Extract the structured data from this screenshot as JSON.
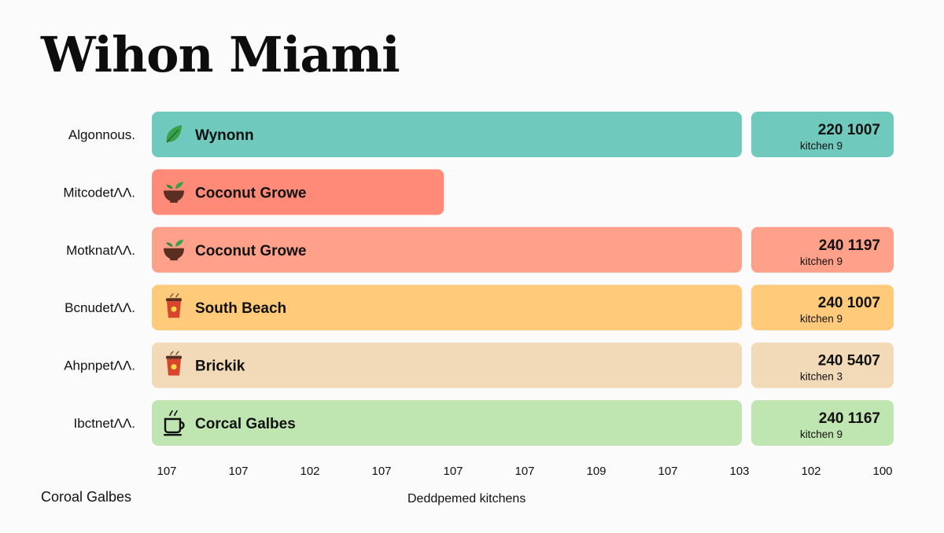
{
  "title": "Wihon Miami",
  "footer_note": "Coroal Galbes",
  "chart_data": {
    "type": "bar",
    "orientation": "horizontal",
    "xlabel": "Deddpemed kitchens",
    "x_tick_labels": [
      "107",
      "107",
      "102",
      "107",
      "107",
      "107",
      "109",
      "107",
      "103",
      "102",
      "100"
    ],
    "grid": false,
    "rows": [
      {
        "category": "Algonnous.",
        "bar_label": "Wynonn",
        "icon": "leaf-icon",
        "color": "#6fc9bd",
        "fraction": 1.0,
        "value_label": "220 1007",
        "sub_label": "kitchen 9",
        "has_value_box": true
      },
      {
        "category": "MitcodetΛΛ.",
        "bar_label": "Coconut Growe",
        "icon": "bowl-icon",
        "color": "#ff8a78",
        "fraction": 0.495,
        "value_label": "",
        "sub_label": "",
        "has_value_box": false
      },
      {
        "category": "MotknatΛΛ.",
        "bar_label": "Coconut Growe",
        "icon": "bowl-icon",
        "color": "#ffa08a",
        "fraction": 1.0,
        "value_label": "240 1197",
        "sub_label": "kitchen 9",
        "has_value_box": true
      },
      {
        "category": "BcnudetΛΛ.",
        "bar_label": "South Beach",
        "icon": "coffee-cup-icon",
        "color": "#ffca7a",
        "fraction": 1.0,
        "value_label": "240 1007",
        "sub_label": "kitchen 9",
        "has_value_box": true
      },
      {
        "category": "AhpnpetΛΛ.",
        "bar_label": "Brickik",
        "icon": "coffee-cup-icon",
        "color": "#f2d9b8",
        "fraction": 1.0,
        "value_label": "240 5407",
        "sub_label": "kitchen 3",
        "has_value_box": true
      },
      {
        "category": "IbctnetΛΛ.",
        "bar_label": "Corcal Galbes",
        "icon": "mug-icon",
        "color": "#bfe5b0",
        "fraction": 1.0,
        "value_label": "240 1167",
        "sub_label": "kitchen 9",
        "has_value_box": true
      }
    ]
  }
}
